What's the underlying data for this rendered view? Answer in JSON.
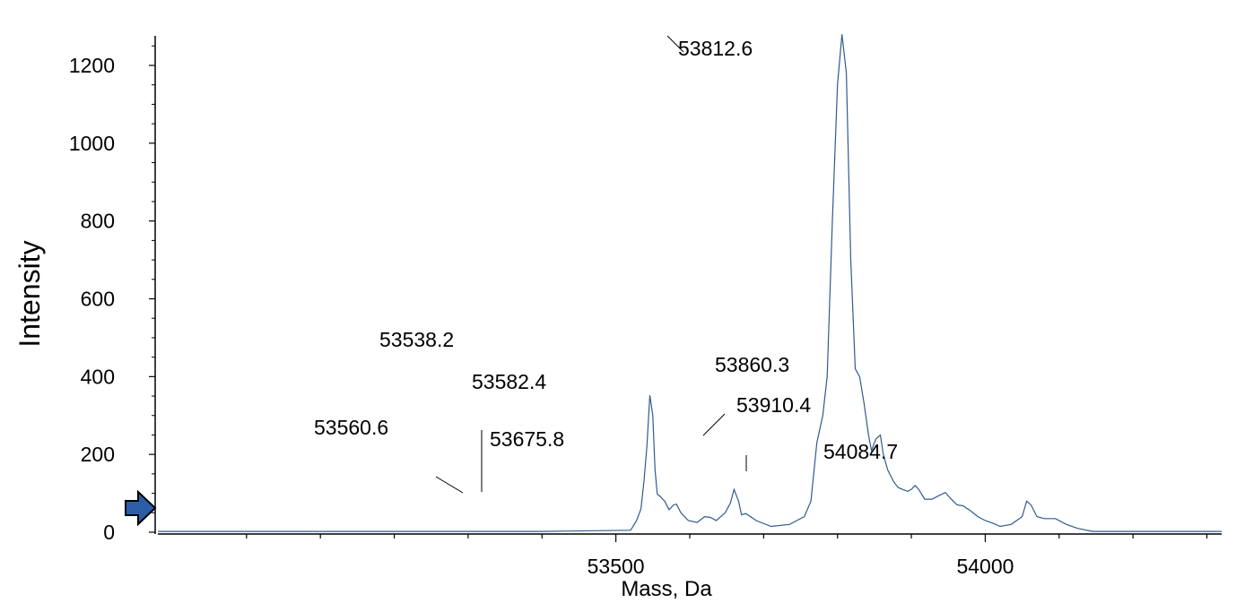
{
  "chart_data": {
    "type": "line",
    "xlabel": "Mass, Da",
    "ylabel": "Intensity",
    "xlim": [
      52880,
      54320
    ],
    "ylim": [
      0,
      1280
    ],
    "x_ticks": [
      53500,
      54000
    ],
    "y_ticks": [
      0,
      200,
      400,
      600,
      800,
      1000,
      1200
    ],
    "line_color": "#2f5b8f",
    "grid": false,
    "series": [
      {
        "values": [
          [
            52880,
            2
          ],
          [
            53400,
            2
          ],
          [
            53520,
            5
          ],
          [
            53528,
            30
          ],
          [
            53534,
            60
          ],
          [
            53538,
            130
          ],
          [
            53542,
            220
          ],
          [
            53546,
            352
          ],
          [
            53550,
            300
          ],
          [
            53553,
            160
          ],
          [
            53556,
            98
          ],
          [
            53560,
            92
          ],
          [
            53566,
            80
          ],
          [
            53572,
            58
          ],
          [
            53578,
            70
          ],
          [
            53582,
            72
          ],
          [
            53588,
            50
          ],
          [
            53598,
            30
          ],
          [
            53610,
            25
          ],
          [
            53620,
            40
          ],
          [
            53628,
            38
          ],
          [
            53636,
            30
          ],
          [
            53648,
            50
          ],
          [
            53655,
            75
          ],
          [
            53660,
            110
          ],
          [
            53666,
            80
          ],
          [
            53670,
            45
          ],
          [
            53676,
            48
          ],
          [
            53690,
            30
          ],
          [
            53710,
            15
          ],
          [
            53735,
            20
          ],
          [
            53755,
            40
          ],
          [
            53764,
            80
          ],
          [
            53772,
            230
          ],
          [
            53780,
            300
          ],
          [
            53786,
            400
          ],
          [
            53793,
            800
          ],
          [
            53800,
            1150
          ],
          [
            53806,
            1280
          ],
          [
            53812,
            1180
          ],
          [
            53818,
            700
          ],
          [
            53824,
            420
          ],
          [
            53830,
            400
          ],
          [
            53836,
            330
          ],
          [
            53842,
            250
          ],
          [
            53846,
            210
          ],
          [
            53852,
            240
          ],
          [
            53858,
            250
          ],
          [
            53862,
            200
          ],
          [
            53868,
            160
          ],
          [
            53876,
            130
          ],
          [
            53882,
            115
          ],
          [
            53888,
            110
          ],
          [
            53895,
            105
          ],
          [
            53900,
            110
          ],
          [
            53905,
            120
          ],
          [
            53910,
            110
          ],
          [
            53918,
            85
          ],
          [
            53928,
            85
          ],
          [
            53938,
            95
          ],
          [
            53946,
            102
          ],
          [
            53954,
            85
          ],
          [
            53962,
            70
          ],
          [
            53970,
            68
          ],
          [
            53980,
            55
          ],
          [
            53990,
            40
          ],
          [
            54000,
            30
          ],
          [
            54012,
            22
          ],
          [
            54020,
            15
          ],
          [
            54035,
            20
          ],
          [
            54050,
            40
          ],
          [
            54056,
            80
          ],
          [
            54062,
            70
          ],
          [
            54070,
            40
          ],
          [
            54080,
            35
          ],
          [
            54095,
            35
          ],
          [
            54110,
            20
          ],
          [
            54125,
            10
          ],
          [
            54145,
            2
          ],
          [
            54320,
            2
          ]
        ]
      }
    ],
    "annotations": [
      {
        "text": "53538.2",
        "x": 53546,
        "y": 352
      },
      {
        "text": "53560.6",
        "x": 53560,
        "y": 92
      },
      {
        "text": "53582.4",
        "x": 53582,
        "y": 72
      },
      {
        "text": "53675.8",
        "x": 53676,
        "y": 48
      },
      {
        "text": "53812.6",
        "x": 53806,
        "y": 1280
      },
      {
        "text": "53860.3",
        "x": 53836,
        "y": 330
      },
      {
        "text": "53910.4",
        "x": 53852,
        "y": 240
      },
      {
        "text": "54084.7",
        "x": 53910,
        "y": 120
      }
    ]
  }
}
